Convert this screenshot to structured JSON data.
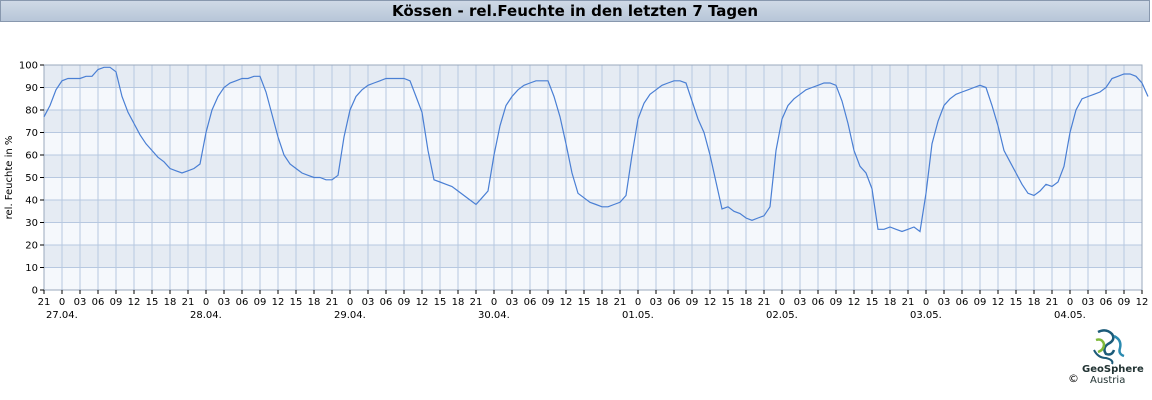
{
  "header": {
    "title": "Kössen - rel.Feuchte in den letzten 7 Tagen"
  },
  "logo": {
    "name_line1": "GeoSphere",
    "name_line2": "Austria",
    "copyright": "©"
  },
  "chart_data": {
    "type": "line",
    "title": "Kössen - rel.Feuchte in den letzten 7 Tagen",
    "ylabel": "rel. Feuchte in %",
    "xlabel": "",
    "ylim": [
      0,
      100
    ],
    "yticks": [
      0,
      10,
      20,
      30,
      40,
      50,
      60,
      70,
      80,
      90,
      100
    ],
    "x_tick_labels": [
      "21",
      "0",
      "03",
      "06",
      "09",
      "12",
      "15",
      "18",
      "21",
      "0",
      "03",
      "06",
      "09",
      "12",
      "15",
      "18",
      "21",
      "0",
      "03",
      "06",
      "09",
      "12",
      "15",
      "18",
      "21",
      "0",
      "03",
      "06",
      "09",
      "12",
      "15",
      "18",
      "21",
      "0",
      "03",
      "06",
      "09",
      "12",
      "15",
      "18",
      "21",
      "0",
      "03",
      "06",
      "09",
      "12",
      "15",
      "18",
      "21",
      "0",
      "03",
      "06",
      "09",
      "12",
      "15",
      "18",
      "21",
      "0",
      "03",
      "06",
      "09",
      "12"
    ],
    "date_labels": [
      {
        "label": "27.04.",
        "hour_index": 1
      },
      {
        "label": "28.04.",
        "hour_index": 9
      },
      {
        "label": "29.04.",
        "hour_index": 17
      },
      {
        "label": "30.04.",
        "hour_index": 25
      },
      {
        "label": "01.05.",
        "hour_index": 33
      },
      {
        "label": "02.05.",
        "hour_index": 41
      },
      {
        "label": "03.05.",
        "hour_index": 49
      },
      {
        "label": "04.05.",
        "hour_index": 57
      }
    ],
    "x_unit": "hours since 26.04. 21:00",
    "xlim": [
      0,
      183
    ],
    "line_color": "#4a7fd4",
    "band_colors": [
      "#e5ebf3",
      "#f5f8fc"
    ],
    "grid": true,
    "series": [
      {
        "values": [
          [
            0,
            77
          ],
          [
            1,
            82
          ],
          [
            2,
            89
          ],
          [
            3,
            93
          ],
          [
            4,
            94
          ],
          [
            5,
            94
          ],
          [
            6,
            94
          ],
          [
            7,
            95
          ],
          [
            8,
            95
          ],
          [
            9,
            98
          ],
          [
            10,
            99
          ],
          [
            11,
            99
          ],
          [
            12,
            97
          ],
          [
            13,
            86
          ],
          [
            14,
            79
          ],
          [
            15,
            74
          ],
          [
            16,
            69
          ],
          [
            17,
            65
          ],
          [
            18,
            62
          ],
          [
            19,
            59
          ],
          [
            20,
            57
          ],
          [
            21,
            54
          ],
          [
            22,
            53
          ],
          [
            23,
            52
          ],
          [
            24,
            53
          ],
          [
            25,
            54
          ],
          [
            26,
            56
          ],
          [
            27,
            70
          ],
          [
            28,
            80
          ],
          [
            29,
            86
          ],
          [
            30,
            90
          ],
          [
            31,
            92
          ],
          [
            32,
            93
          ],
          [
            33,
            94
          ],
          [
            34,
            94
          ],
          [
            35,
            95
          ],
          [
            36,
            95
          ],
          [
            37,
            88
          ],
          [
            38,
            78
          ],
          [
            39,
            68
          ],
          [
            40,
            60
          ],
          [
            41,
            56
          ],
          [
            42,
            54
          ],
          [
            43,
            52
          ],
          [
            44,
            51
          ],
          [
            45,
            50
          ],
          [
            46,
            50
          ],
          [
            47,
            49
          ],
          [
            48,
            49
          ],
          [
            49,
            51
          ],
          [
            50,
            68
          ],
          [
            51,
            80
          ],
          [
            52,
            86
          ],
          [
            53,
            89
          ],
          [
            54,
            91
          ],
          [
            55,
            92
          ],
          [
            56,
            93
          ],
          [
            57,
            94
          ],
          [
            58,
            94
          ],
          [
            59,
            94
          ],
          [
            60,
            94
          ],
          [
            61,
            93
          ],
          [
            62,
            86
          ],
          [
            63,
            79
          ],
          [
            64,
            62
          ],
          [
            65,
            49
          ],
          [
            66,
            48
          ],
          [
            67,
            47
          ],
          [
            68,
            46
          ],
          [
            69,
            44
          ],
          [
            70,
            42
          ],
          [
            71,
            40
          ],
          [
            72,
            38
          ],
          [
            73,
            41
          ],
          [
            74,
            44
          ],
          [
            75,
            60
          ],
          [
            76,
            73
          ],
          [
            77,
            82
          ],
          [
            78,
            86
          ],
          [
            79,
            89
          ],
          [
            80,
            91
          ],
          [
            81,
            92
          ],
          [
            82,
            93
          ],
          [
            83,
            93
          ],
          [
            84,
            93
          ],
          [
            85,
            86
          ],
          [
            86,
            77
          ],
          [
            87,
            65
          ],
          [
            88,
            52
          ],
          [
            89,
            43
          ],
          [
            90,
            41
          ],
          [
            91,
            39
          ],
          [
            92,
            38
          ],
          [
            93,
            37
          ],
          [
            94,
            37
          ],
          [
            95,
            38
          ],
          [
            96,
            39
          ],
          [
            97,
            42
          ],
          [
            98,
            60
          ],
          [
            99,
            76
          ],
          [
            100,
            83
          ],
          [
            101,
            87
          ],
          [
            102,
            89
          ],
          [
            103,
            91
          ],
          [
            104,
            92
          ],
          [
            105,
            93
          ],
          [
            106,
            93
          ],
          [
            107,
            92
          ],
          [
            108,
            84
          ],
          [
            109,
            76
          ],
          [
            110,
            70
          ],
          [
            111,
            60
          ],
          [
            112,
            48
          ],
          [
            113,
            36
          ],
          [
            114,
            37
          ],
          [
            115,
            35
          ],
          [
            116,
            34
          ],
          [
            117,
            32
          ],
          [
            118,
            31
          ],
          [
            119,
            32
          ],
          [
            120,
            33
          ],
          [
            121,
            37
          ],
          [
            122,
            62
          ],
          [
            123,
            76
          ],
          [
            124,
            82
          ],
          [
            125,
            85
          ],
          [
            126,
            87
          ],
          [
            127,
            89
          ],
          [
            128,
            90
          ],
          [
            129,
            91
          ],
          [
            130,
            92
          ],
          [
            131,
            92
          ],
          [
            132,
            91
          ],
          [
            133,
            84
          ],
          [
            134,
            74
          ],
          [
            135,
            62
          ],
          [
            136,
            55
          ],
          [
            137,
            52
          ],
          [
            138,
            45
          ],
          [
            139,
            27
          ],
          [
            140,
            27
          ],
          [
            141,
            28
          ],
          [
            142,
            27
          ],
          [
            143,
            26
          ],
          [
            144,
            27
          ],
          [
            145,
            28
          ],
          [
            146,
            26
          ],
          [
            147,
            43
          ],
          [
            148,
            65
          ],
          [
            149,
            75
          ],
          [
            150,
            82
          ],
          [
            151,
            85
          ],
          [
            152,
            87
          ],
          [
            153,
            88
          ],
          [
            154,
            89
          ],
          [
            155,
            90
          ],
          [
            156,
            91
          ],
          [
            157,
            90
          ],
          [
            158,
            82
          ],
          [
            159,
            73
          ],
          [
            160,
            62
          ],
          [
            161,
            57
          ],
          [
            162,
            52
          ],
          [
            163,
            47
          ],
          [
            164,
            43
          ],
          [
            165,
            42
          ],
          [
            166,
            44
          ],
          [
            167,
            47
          ],
          [
            168,
            46
          ],
          [
            169,
            48
          ],
          [
            170,
            55
          ],
          [
            171,
            70
          ],
          [
            172,
            80
          ],
          [
            173,
            85
          ],
          [
            174,
            86
          ],
          [
            175,
            87
          ],
          [
            176,
            88
          ],
          [
            177,
            90
          ],
          [
            178,
            94
          ],
          [
            179,
            95
          ],
          [
            180,
            96
          ],
          [
            181,
            96
          ],
          [
            182,
            95
          ],
          [
            183,
            92
          ],
          [
            184,
            86
          ]
        ]
      }
    ]
  }
}
